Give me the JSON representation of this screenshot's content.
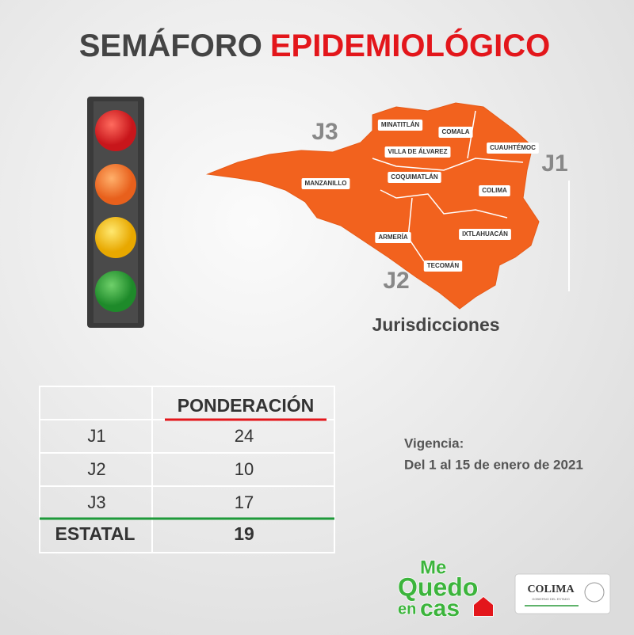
{
  "header": {
    "title_part1": "SEMÁFORO",
    "title_part2": "EPIDEMIOLÓGICO"
  },
  "map": {
    "municipalities": [
      "MINATITLÁN",
      "COMALA",
      "VILLA DE ÁLVAREZ",
      "CUAUHTÉMOC",
      "COQUIMATLÁN",
      "MANZANILLO",
      "COLIMA",
      "ARMERÍA",
      "IXTLAHUACÁN",
      "TECOMÁN"
    ],
    "jurisdictions": [
      "J3",
      "J1",
      "J2"
    ],
    "caption": "Jurisdicciones"
  },
  "table": {
    "header": "PONDERACIÓN",
    "rows": [
      [
        "J1",
        24
      ],
      [
        "J2",
        10
      ],
      [
        "J3",
        17
      ]
    ],
    "total": [
      "ESTATAL",
      19
    ]
  },
  "validity": {
    "label": "Vigencia:",
    "period": "Del 1 al 15 de enero de 2021"
  },
  "logos": {
    "campaign": [
      "Me",
      "Quedo",
      "en",
      "cas"
    ],
    "government": "COLIMA",
    "government_sub": "GOBIERNO DEL ESTADO"
  }
}
